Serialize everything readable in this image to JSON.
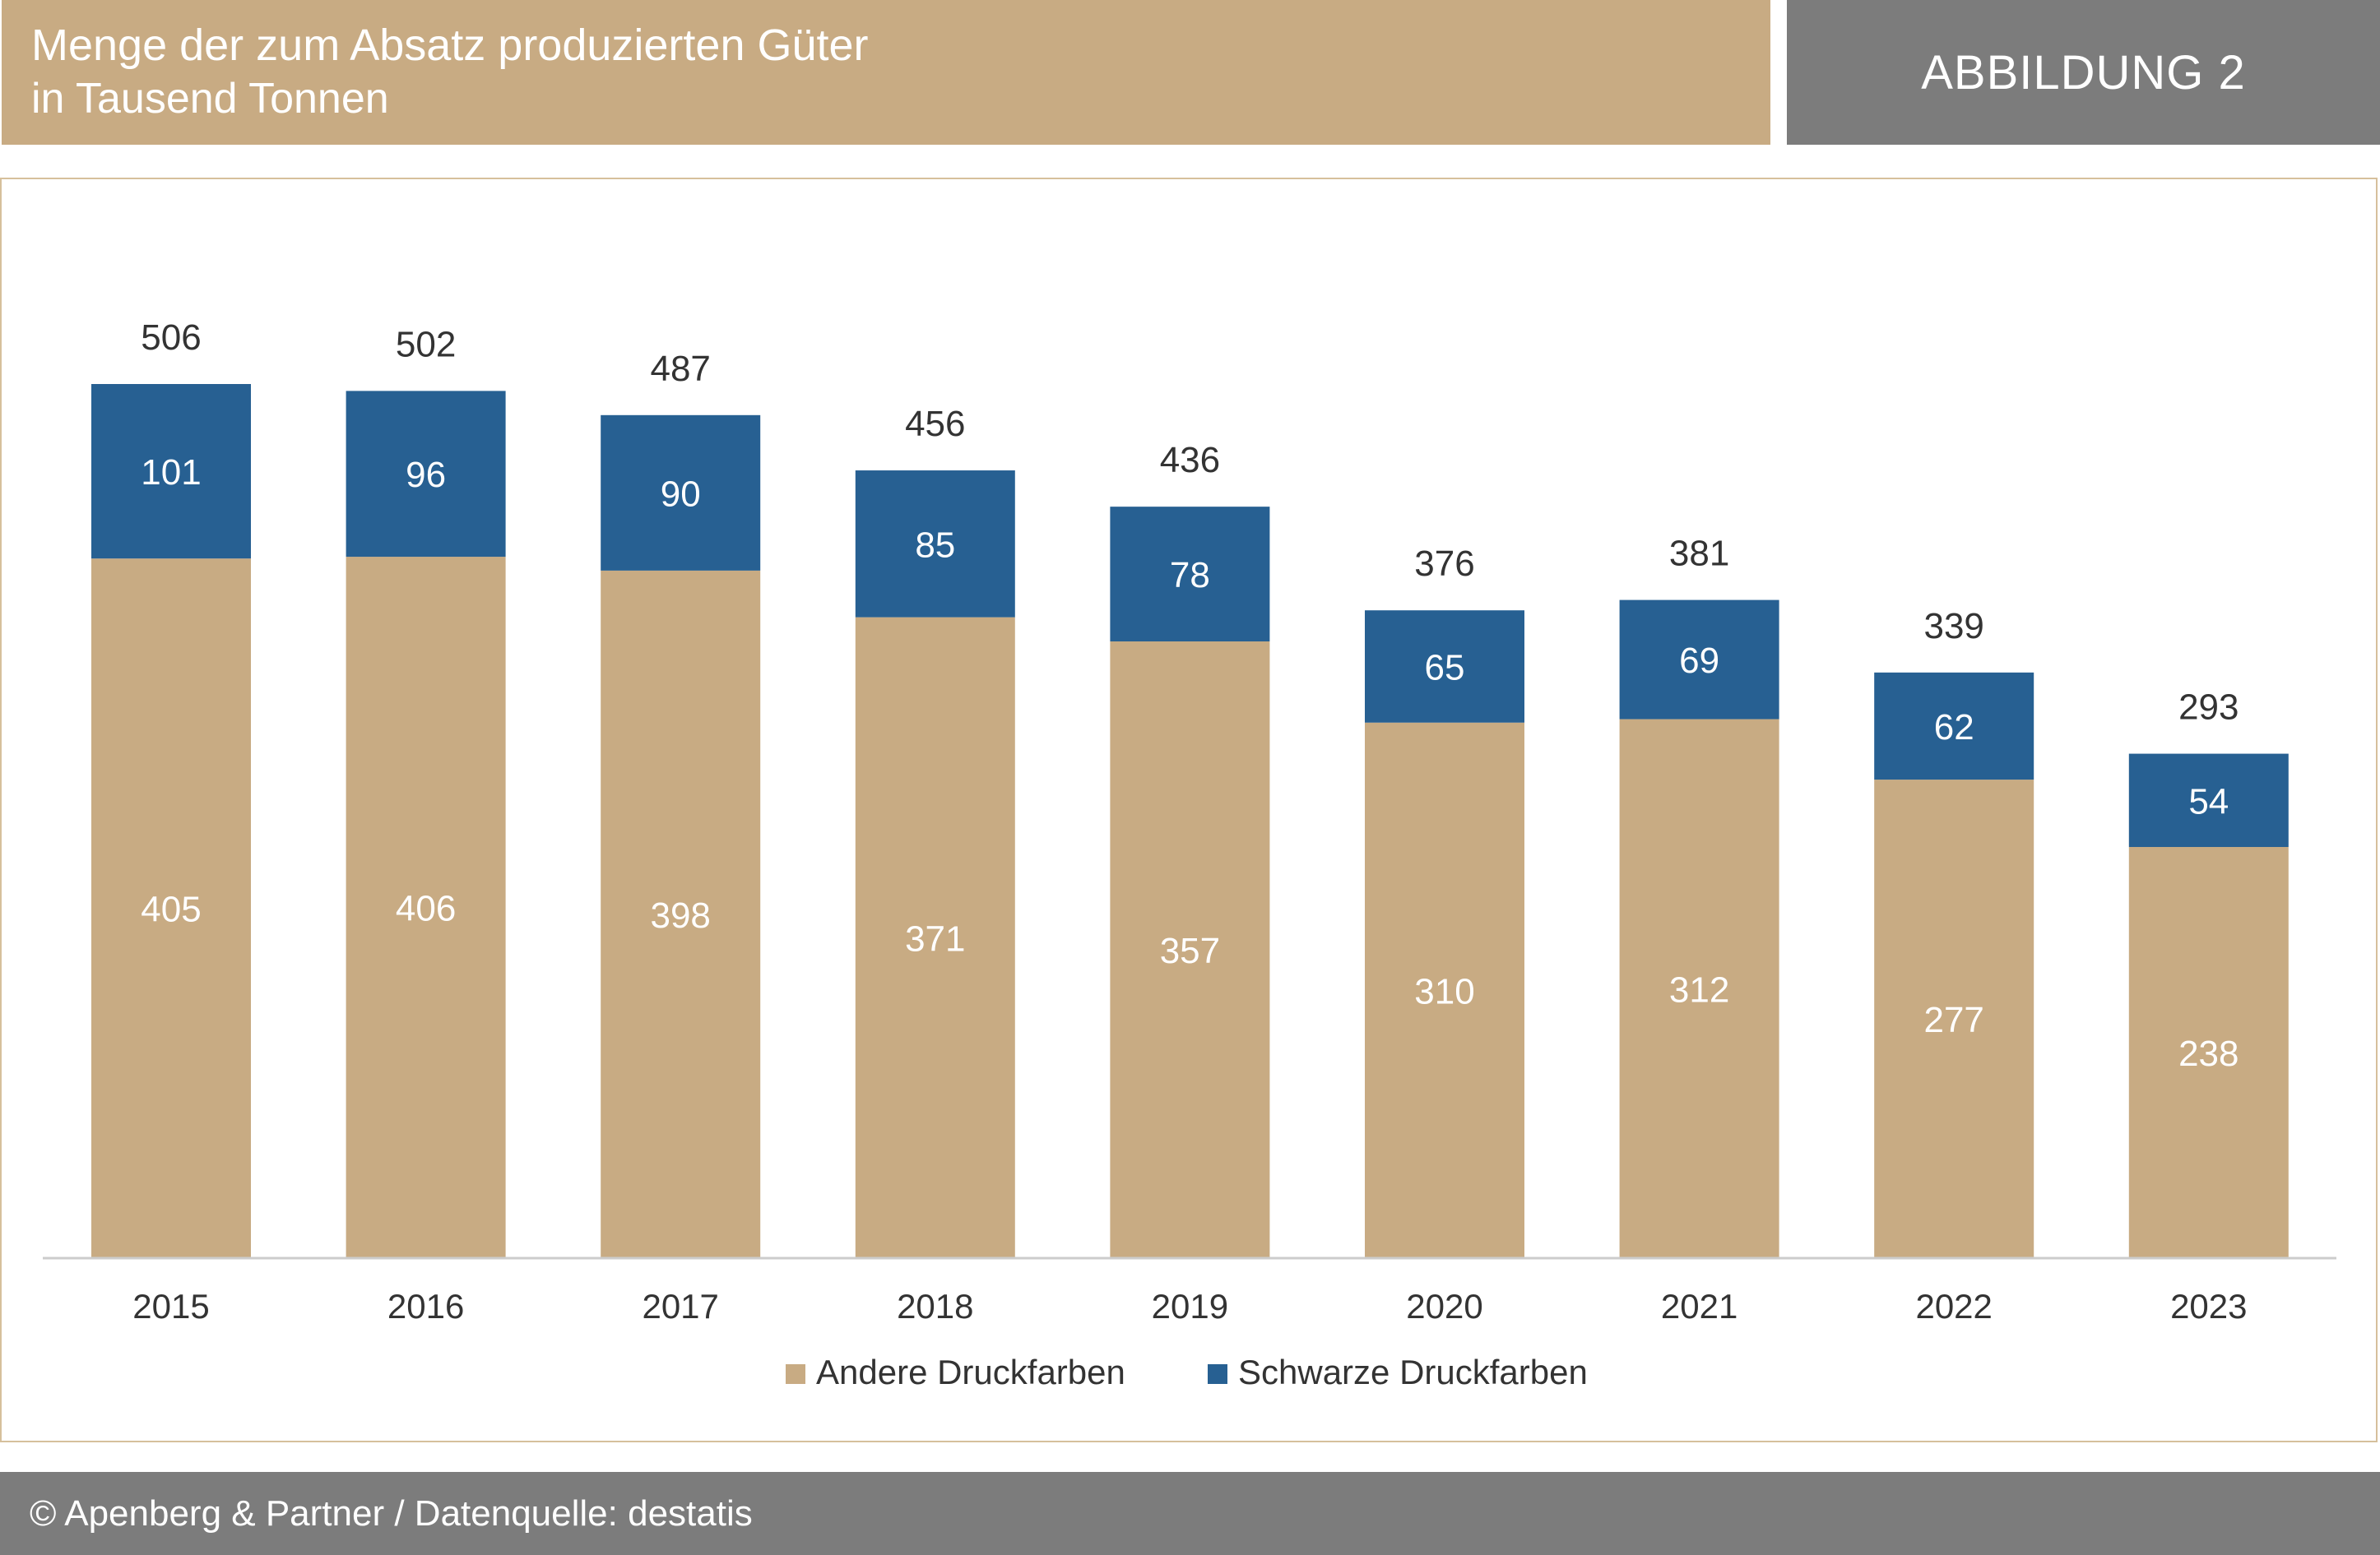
{
  "header": {
    "title": "Menge der zum Absatz produzierten Güter",
    "subtitle": "in Tausend Tonnen",
    "figure_label": "ABBILDUNG 2"
  },
  "footer": {
    "source": "© Apenberg & Partner / Datenquelle: destatis"
  },
  "colors": {
    "andere": "#c8ab83",
    "schwarze": "#276092",
    "axis": "#cccccc",
    "text": "#333333",
    "inner_label": "#ffffff"
  },
  "chart_data": {
    "type": "bar",
    "stacked": true,
    "title": "Menge der zum Absatz produzierten Güter",
    "subtitle": "in Tausend Tonnen",
    "xlabel": "",
    "ylabel": "",
    "categories": [
      "2015",
      "2016",
      "2017",
      "2018",
      "2019",
      "2020",
      "2021",
      "2022",
      "2023"
    ],
    "series": [
      {
        "name": "Andere Druckfarben",
        "values": [
          405,
          406,
          398,
          371,
          357,
          310,
          312,
          277,
          238
        ]
      },
      {
        "name": "Schwarze Druckfarben",
        "values": [
          101,
          96,
          90,
          85,
          78,
          65,
          69,
          62,
          54
        ]
      }
    ],
    "totals": [
      506,
      502,
      487,
      456,
      436,
      376,
      381,
      339,
      293
    ],
    "ylim": [
      0,
      506
    ],
    "grid": false,
    "legend_position": "bottom-center"
  }
}
